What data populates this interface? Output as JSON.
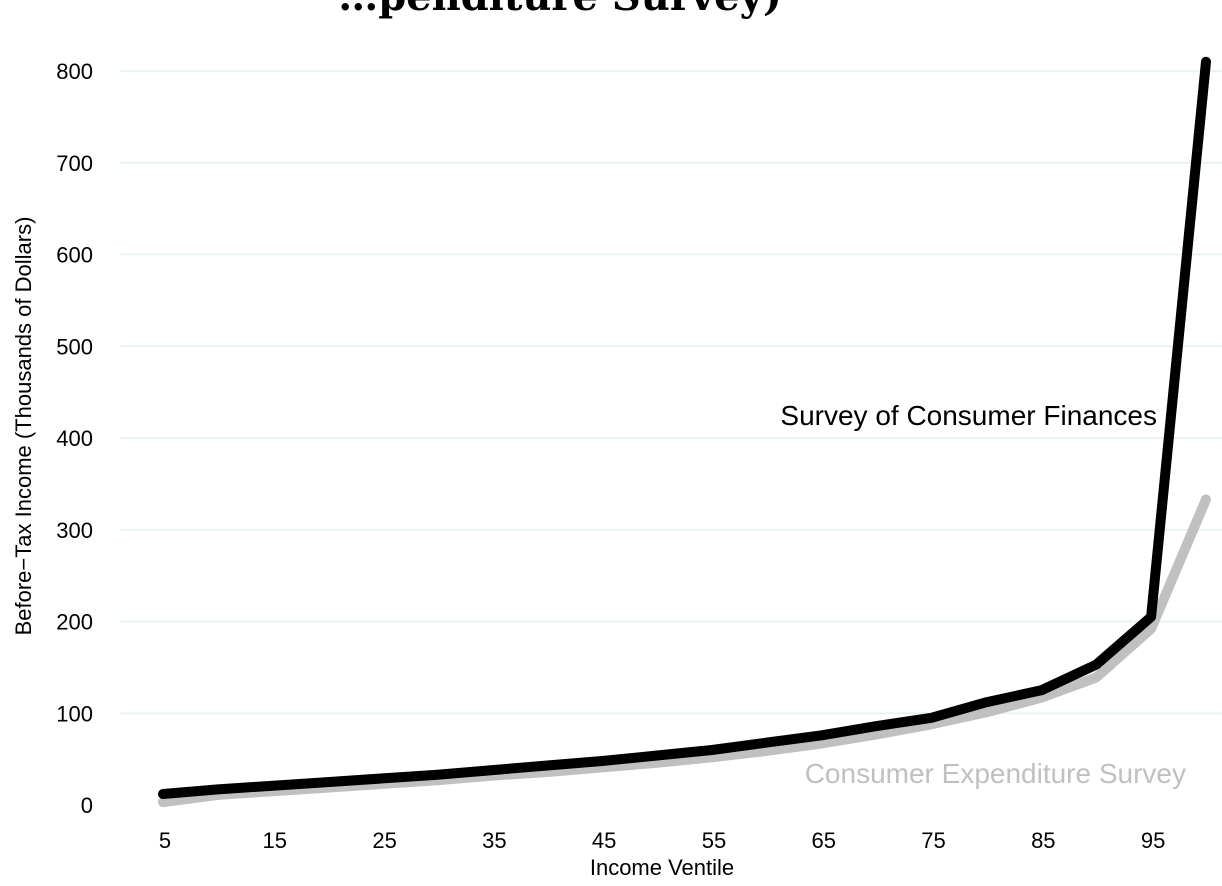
{
  "chart_data": {
    "type": "line",
    "title": "…penditure Survey)",
    "xlabel": "Income Ventile",
    "ylabel": "Before−Tax Income (Thousands of Dollars)",
    "x": [
      5,
      10,
      15,
      20,
      25,
      30,
      35,
      40,
      45,
      50,
      55,
      60,
      65,
      70,
      75,
      80,
      85,
      90,
      95,
      100
    ],
    "x_ticks": [
      "5",
      "15",
      "25",
      "35",
      "45",
      "55",
      "65",
      "75",
      "85",
      "95"
    ],
    "y_ticks": [
      "0",
      "100",
      "200",
      "300",
      "400",
      "500",
      "600",
      "700",
      "800"
    ],
    "xlim": [
      0,
      100
    ],
    "ylim": [
      -10,
      820
    ],
    "grid": true,
    "series": [
      {
        "name": "Survey of Consumer Finances",
        "color": "#000000",
        "values": [
          12,
          17,
          21,
          25,
          29,
          33,
          38,
          43,
          48,
          54,
          60,
          68,
          76,
          86,
          95,
          112,
          125,
          153,
          205,
          810
        ]
      },
      {
        "name": "Consumer Expenditure Survey",
        "color": "#c0c0c0",
        "values": [
          3,
          11,
          15,
          19,
          23,
          27,
          32,
          36,
          41,
          46,
          52,
          59,
          67,
          77,
          88,
          101,
          117,
          139,
          192,
          333
        ]
      }
    ]
  }
}
